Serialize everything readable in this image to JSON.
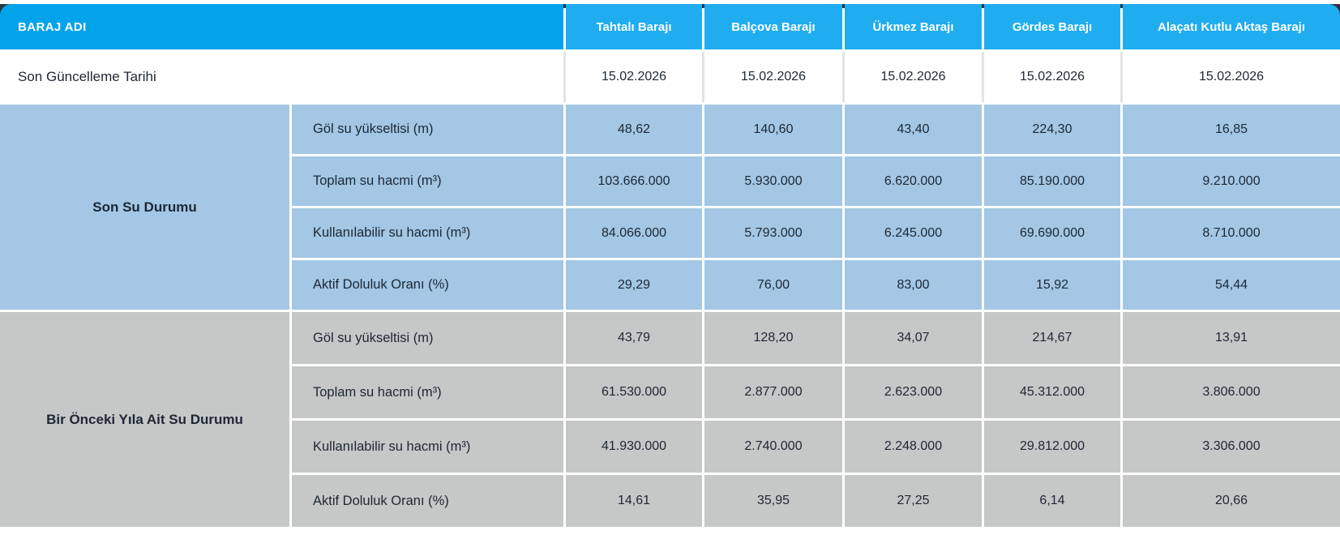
{
  "colors": {
    "header_left_bg": "#03a3eb",
    "header_cell_bg": "#1fadf0",
    "section_recent_bg": "#a3c7e5",
    "section_previous_bg": "#c6c7c7",
    "top_strip": "#2b3541",
    "text_dark": "#1d2733",
    "header_text": "#ffffff"
  },
  "table": {
    "header": {
      "name_col": "BARAJ ADI",
      "dams": [
        "Tahtalı Barajı",
        "Balçova Barajı",
        "Ürkmez Barajı",
        "Gördes Barajı",
        "Alaçatı Kutlu Aktaş Barajı"
      ]
    },
    "update_row": {
      "label": "Son Güncelleme Tarihi",
      "values": [
        "15.02.2026",
        "15.02.2026",
        "15.02.2026",
        "15.02.2026",
        "15.02.2026"
      ]
    },
    "sections": [
      {
        "title": "Son Su Durumu",
        "rows": [
          {
            "label": "Göl su yükseltisi (m)",
            "values": [
              "48,62",
              "140,60",
              "43,40",
              "224,30",
              "16,85"
            ]
          },
          {
            "label": "Toplam su hacmi (m³)",
            "values": [
              "103.666.000",
              "5.930.000",
              "6.620.000",
              "85.190.000",
              "9.210.000"
            ]
          },
          {
            "label": "Kullanılabilir su hacmi (m³)",
            "values": [
              "84.066.000",
              "5.793.000",
              "6.245.000",
              "69.690.000",
              "8.710.000"
            ]
          },
          {
            "label": "Aktif Doluluk Oranı (%)",
            "values": [
              "29,29",
              "76,00",
              "83,00",
              "15,92",
              "54,44"
            ]
          }
        ]
      },
      {
        "title": "Bir Önceki Yıla Ait Su Durumu",
        "rows": [
          {
            "label": "Göl su yükseltisi (m)",
            "values": [
              "43,79",
              "128,20",
              "34,07",
              "214,67",
              "13,91"
            ]
          },
          {
            "label": "Toplam su hacmi (m³)",
            "values": [
              "61.530.000",
              "2.877.000",
              "2.623.000",
              "45.312.000",
              "3.806.000"
            ]
          },
          {
            "label": "Kullanılabilir su hacmi (m³)",
            "values": [
              "41.930.000",
              "2.740.000",
              "2.248.000",
              "29.812.000",
              "3.306.000"
            ]
          },
          {
            "label": "Aktif Doluluk Oranı (%)",
            "values": [
              "14,61",
              "35,95",
              "27,25",
              "6,14",
              "20,66"
            ]
          }
        ]
      }
    ]
  }
}
